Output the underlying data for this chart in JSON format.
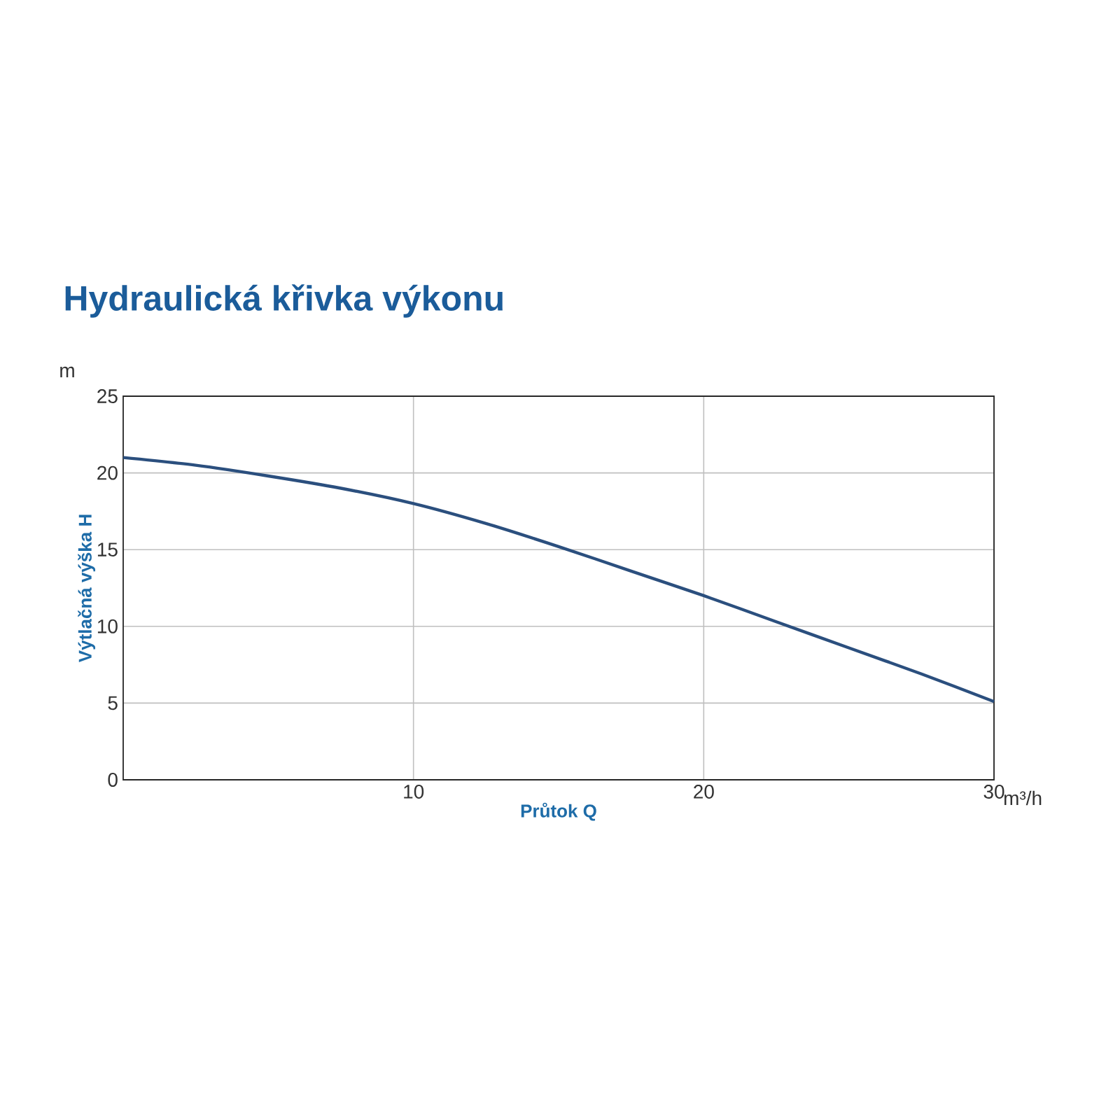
{
  "chart_data": {
    "type": "line",
    "title": "Hydraulická křivka výkonu",
    "xlabel": "Průtok Q",
    "ylabel": "Výtlačná výška H",
    "annotations": [
      "m",
      "m³/h"
    ],
    "x": [
      0,
      2.5,
      5,
      7.5,
      10,
      12.5,
      15,
      17.5,
      20,
      22.5,
      25,
      27.5,
      30
    ],
    "series": [
      {
        "color": "#2b4f7e",
        "values": [
          21,
          20.5,
          19.8,
          19.0,
          18,
          16.7,
          15.2,
          13.6,
          12,
          10.3,
          8.6,
          6.9,
          5.1
        ]
      }
    ],
    "xlim": [
      0,
      30
    ],
    "ylim": [
      0,
      25
    ],
    "xticks": [
      10,
      20,
      30
    ],
    "yticks": [
      0,
      5,
      10,
      15,
      20,
      25
    ],
    "grid": true,
    "marker": "none",
    "line_style": "solid"
  }
}
